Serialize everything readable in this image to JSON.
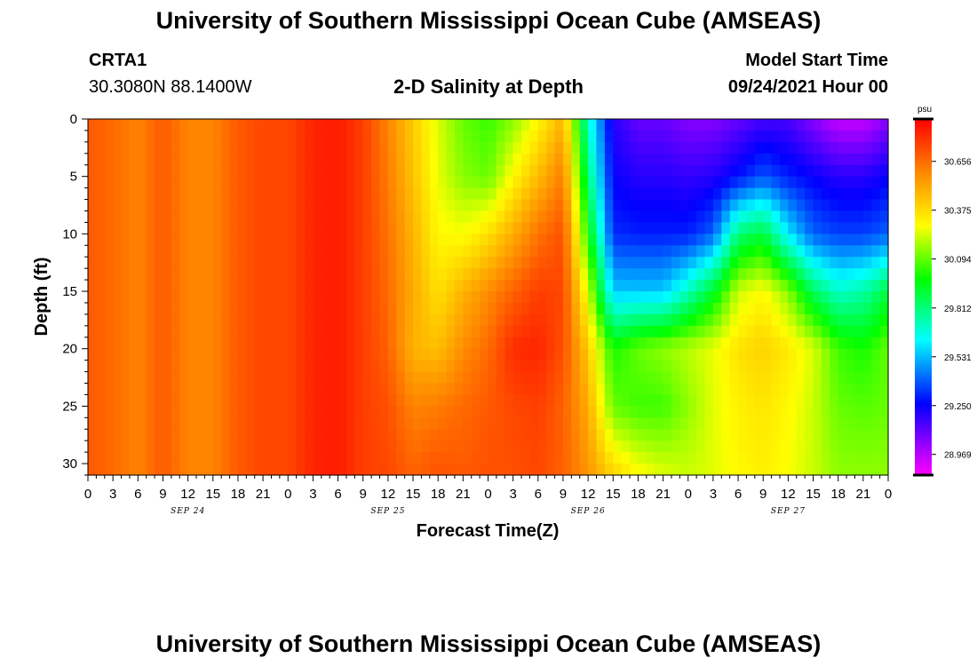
{
  "header": {
    "title": "University of Southern Mississippi Ocean Cube (AMSEAS)",
    "station_id": "CRTA1",
    "coords": "30.3080N  88.1400W",
    "plot_title": "2-D Salinity at Depth",
    "model_start_label": "Model Start Time",
    "model_start_value": "09/24/2021 Hour 00"
  },
  "footer": {
    "title": "University of Southern Mississippi Ocean Cube (AMSEAS)"
  },
  "chart_data": {
    "type": "heatmap",
    "title": "2-D Salinity at Depth",
    "xlabel": "Forecast Time(Z)",
    "ylabel": "Depth (ft)",
    "x_hours": [
      0,
      96
    ],
    "xlim": [
      0,
      96
    ],
    "ylim": [
      0,
      31
    ],
    "y_ticks": [
      0,
      5,
      10,
      15,
      20,
      25,
      30
    ],
    "x_tick_labels": [
      "0",
      "3",
      "6",
      "9",
      "12",
      "15",
      "18",
      "21",
      "0",
      "3",
      "6",
      "9",
      "12",
      "15",
      "18",
      "21",
      "0",
      "3",
      "6",
      "9",
      "12",
      "15",
      "18",
      "21",
      "0",
      "3",
      "6",
      "9",
      "12",
      "15",
      "18",
      "21",
      "0"
    ],
    "date_labels": [
      {
        "label": "SEP 24",
        "hour": 12
      },
      {
        "label": "SEP 25",
        "hour": 36
      },
      {
        "label": "SEP 26",
        "hour": 60
      },
      {
        "label": "SEP 27",
        "hour": 84
      }
    ],
    "colorbar": {
      "unit": "psu",
      "min": 28.85,
      "max": 30.9,
      "tick_values": [
        30.656,
        30.375,
        30.094,
        29.812,
        29.531,
        29.25,
        28.969
      ],
      "tick_labels": [
        "30.656",
        "30.375",
        "30.094",
        "29.812",
        "29.531",
        "29.250",
        "28.969"
      ]
    },
    "salinity_profiles": {
      "hours": [
        0,
        3,
        6,
        9,
        12,
        15,
        18,
        21,
        24,
        27,
        30,
        33,
        36,
        39,
        42,
        45,
        48,
        51,
        54,
        57,
        60,
        63,
        66,
        69,
        72,
        75,
        78,
        81,
        84,
        87,
        90,
        93,
        96
      ],
      "depths_ft": [
        0,
        5,
        10,
        15,
        20,
        25,
        31
      ],
      "values": [
        [
          30.7,
          30.7,
          30.7,
          30.7,
          30.7,
          30.7,
          30.7
        ],
        [
          30.66,
          30.66,
          30.66,
          30.66,
          30.66,
          30.66,
          30.66
        ],
        [
          30.6,
          30.6,
          30.6,
          30.6,
          30.6,
          30.6,
          30.6
        ],
        [
          30.7,
          30.7,
          30.7,
          30.7,
          30.7,
          30.7,
          30.7
        ],
        [
          30.6,
          30.6,
          30.6,
          30.6,
          30.6,
          30.6,
          30.6
        ],
        [
          30.6,
          30.6,
          30.6,
          30.6,
          30.6,
          30.6,
          30.6
        ],
        [
          30.7,
          30.7,
          30.7,
          30.7,
          30.7,
          30.7,
          30.7
        ],
        [
          30.74,
          30.74,
          30.74,
          30.74,
          30.74,
          30.74,
          30.74
        ],
        [
          30.74,
          30.74,
          30.74,
          30.74,
          30.74,
          30.74,
          30.74
        ],
        [
          30.82,
          30.82,
          30.82,
          30.82,
          30.82,
          30.82,
          30.82
        ],
        [
          30.84,
          30.84,
          30.84,
          30.84,
          30.84,
          30.84,
          30.84
        ],
        [
          30.76,
          30.76,
          30.76,
          30.76,
          30.76,
          30.76,
          30.76
        ],
        [
          30.6,
          30.62,
          30.64,
          30.66,
          30.68,
          30.72,
          30.74
        ],
        [
          30.42,
          30.44,
          30.48,
          30.5,
          30.48,
          30.6,
          30.68
        ],
        [
          30.24,
          30.26,
          30.3,
          30.36,
          30.45,
          30.62,
          30.72
        ],
        [
          30.1,
          30.14,
          30.28,
          30.48,
          30.58,
          30.66,
          30.7
        ],
        [
          30.04,
          30.1,
          30.36,
          30.58,
          30.66,
          30.7,
          30.72
        ],
        [
          30.14,
          30.3,
          30.5,
          30.68,
          30.8,
          30.74,
          30.72
        ],
        [
          30.3,
          30.46,
          30.64,
          30.76,
          30.82,
          30.76,
          30.74
        ],
        [
          30.48,
          30.62,
          30.72,
          30.74,
          30.72,
          30.68,
          30.68
        ],
        [
          29.7,
          29.82,
          30.0,
          30.24,
          30.42,
          30.5,
          30.56
        ],
        [
          29.2,
          29.25,
          29.32,
          29.55,
          30.0,
          30.1,
          30.4
        ],
        [
          29.1,
          29.2,
          29.3,
          29.55,
          30.1,
          30.05,
          30.3
        ],
        [
          29.1,
          29.2,
          29.3,
          29.55,
          30.15,
          30.05,
          30.25
        ],
        [
          29.05,
          29.18,
          29.3,
          29.72,
          30.2,
          30.15,
          30.22
        ],
        [
          29.05,
          29.2,
          29.4,
          29.92,
          30.26,
          30.25,
          30.25
        ],
        [
          29.1,
          29.28,
          29.82,
          30.22,
          30.36,
          30.32,
          30.3
        ],
        [
          29.15,
          29.38,
          29.9,
          30.3,
          30.4,
          30.35,
          30.32
        ],
        [
          29.15,
          29.3,
          29.6,
          30.14,
          30.34,
          30.3,
          30.28
        ],
        [
          29.05,
          29.25,
          29.4,
          29.85,
          30.24,
          30.22,
          30.22
        ],
        [
          28.95,
          29.2,
          29.35,
          29.7,
          30.05,
          30.1,
          30.15
        ],
        [
          28.95,
          29.2,
          29.35,
          29.75,
          30.0,
          30.08,
          30.15
        ],
        [
          29.05,
          29.25,
          29.4,
          29.9,
          30.1,
          30.1,
          30.15
        ]
      ]
    }
  }
}
